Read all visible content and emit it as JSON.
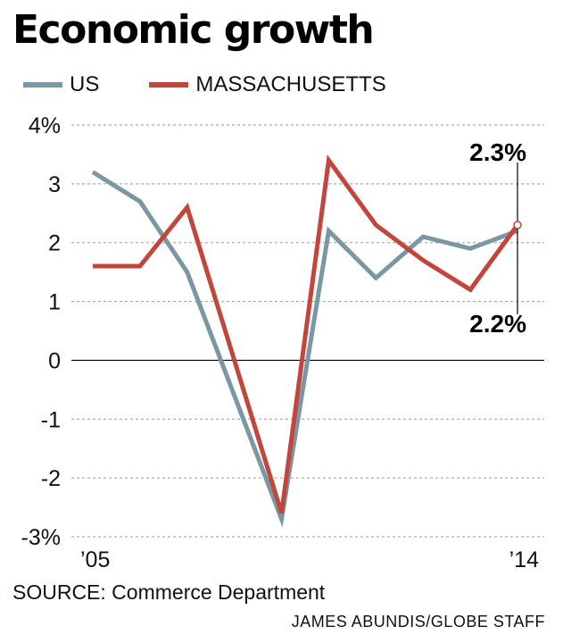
{
  "title": "Economic growth",
  "legend": [
    {
      "label": "US",
      "color": "#7a98a3"
    },
    {
      "label": "MASSACHUSETTS",
      "color": "#c1463b"
    }
  ],
  "source": "SOURCE: Commerce Department",
  "credit": "JAMES ABUNDIS/GLOBE STAFF",
  "chart_data": {
    "type": "line",
    "x": [
      2005,
      2006,
      2007,
      2008,
      2009,
      2010,
      2011,
      2012,
      2013,
      2014
    ],
    "x_tick_labels": [
      {
        "x": 2005,
        "label": "’05"
      },
      {
        "x": 2014,
        "label": "’14"
      }
    ],
    "y_ticks": [
      {
        "value": 4,
        "label": "4%"
      },
      {
        "value": 3,
        "label": "3"
      },
      {
        "value": 2,
        "label": "2"
      },
      {
        "value": 1,
        "label": "1"
      },
      {
        "value": 0,
        "label": "0"
      },
      {
        "value": -1,
        "label": "-1"
      },
      {
        "value": -2,
        "label": "-2"
      },
      {
        "value": -3,
        "label": "-3%"
      }
    ],
    "ylim": [
      -3,
      4
    ],
    "xlim": [
      2005,
      2014
    ],
    "grid": true,
    "series": [
      {
        "name": "US",
        "color": "#7a98a3",
        "values": [
          3.2,
          2.7,
          1.5,
          -0.6,
          -2.7,
          2.2,
          1.4,
          2.1,
          1.9,
          2.2
        ]
      },
      {
        "name": "MASSACHUSETTS",
        "color": "#c1463b",
        "values": [
          1.6,
          1.6,
          2.6,
          0.0,
          -2.6,
          3.4,
          2.3,
          1.7,
          1.2,
          2.3
        ]
      }
    ],
    "annotations": [
      {
        "text": "2.3%",
        "series": "MASSACHUSETTS",
        "x": 2014,
        "y": 2.3,
        "position": "above"
      },
      {
        "text": "2.2%",
        "series": "US",
        "x": 2014,
        "y": 2.2,
        "position": "below"
      }
    ]
  }
}
